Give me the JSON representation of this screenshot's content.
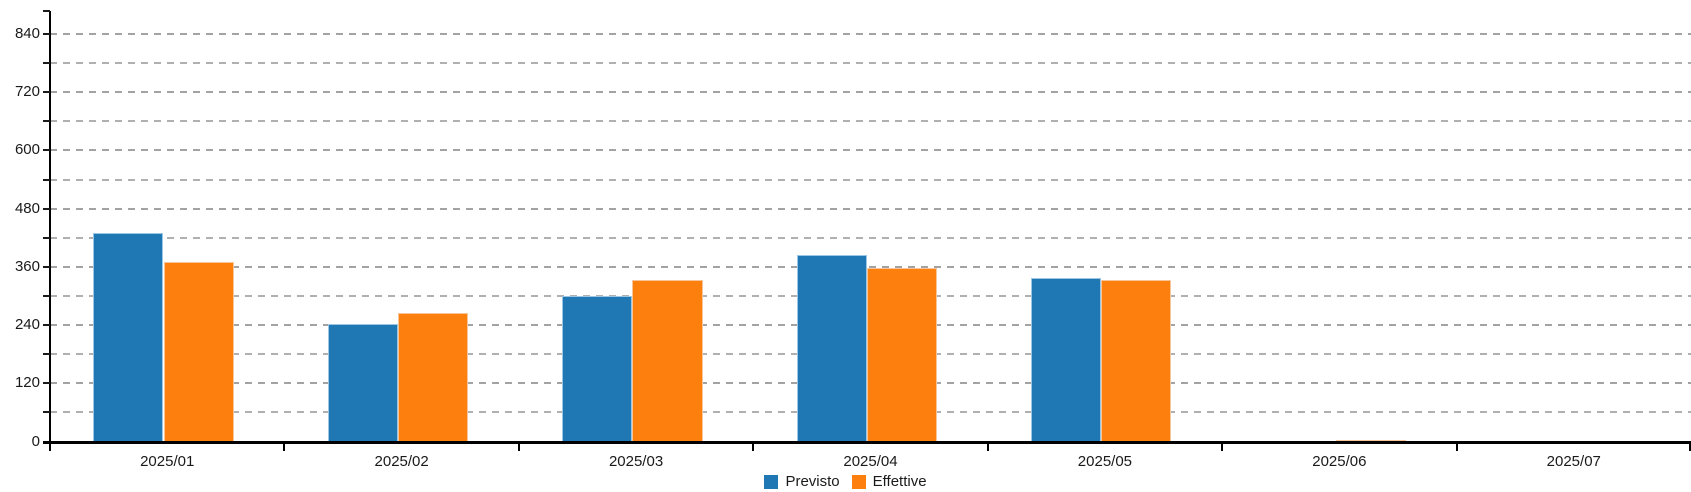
{
  "chart_data": {
    "type": "bar",
    "title": "",
    "categories": [
      "2025/01",
      "2025/02",
      "2025/03",
      "2025/04",
      "2025/05",
      "2025/06",
      "2025/07"
    ],
    "series": [
      {
        "name": "Previsto",
        "color": "#1f77b4",
        "edge_color": "#9cc7e4",
        "values": [
          430,
          243,
          300,
          385,
          338,
          0,
          0
        ]
      },
      {
        "name": "Effettive",
        "color": "#fd7f0e",
        "edge_color": "#f6c69a",
        "values": [
          370,
          264,
          333,
          358,
          333,
          3,
          0
        ]
      }
    ],
    "ylim": [
      0,
      840
    ],
    "ytick_labels": [
      "0",
      "120",
      "240",
      "360",
      "480",
      "600",
      "720",
      "840"
    ],
    "ytick_values": [
      0,
      120,
      240,
      360,
      480,
      600,
      720,
      840
    ],
    "minor_tick_step": 60,
    "grid": "horizontal-dashed",
    "gridline_color": "#b0b0b0",
    "axis_color": "#000000",
    "label_color": "#1a1a1a",
    "legend_position": "bottom-center",
    "xlabel": "",
    "ylabel": ""
  }
}
